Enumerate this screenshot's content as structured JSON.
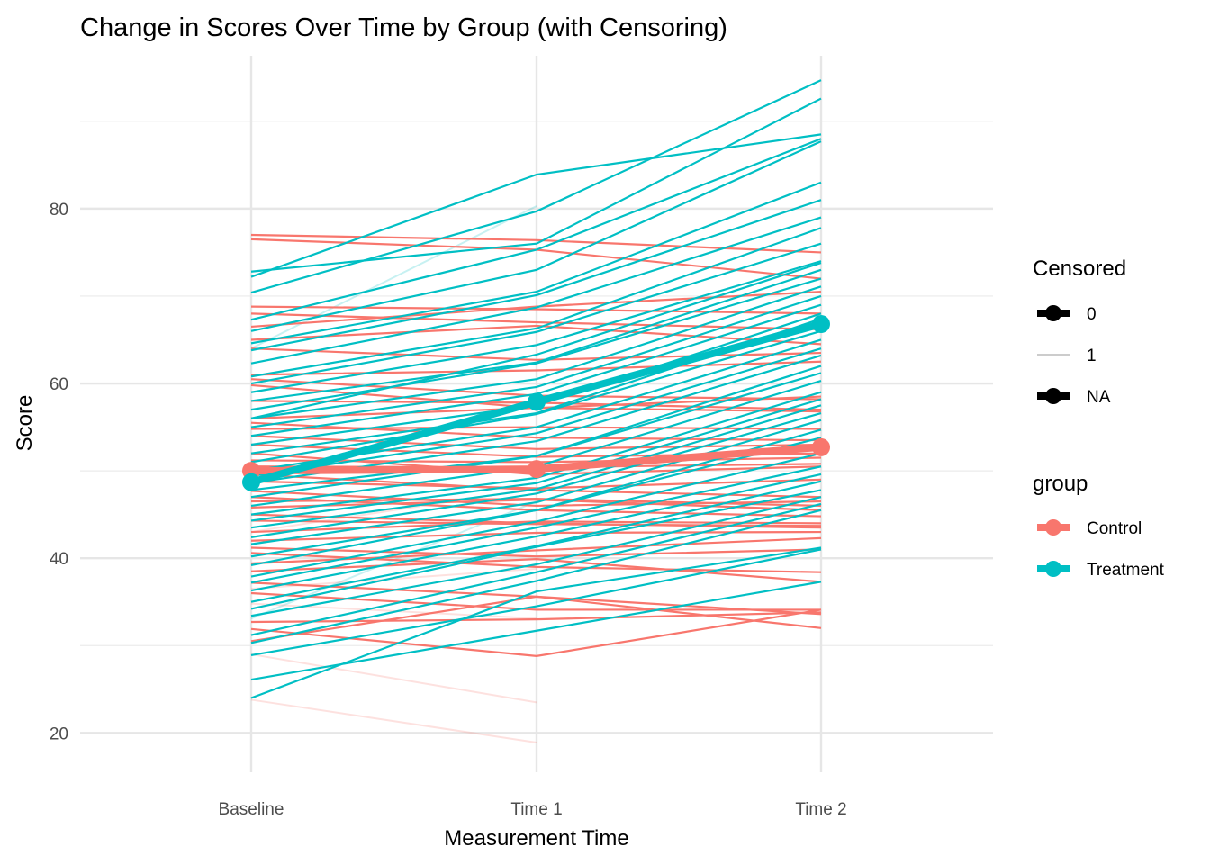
{
  "chart_data": {
    "type": "line",
    "title": "Change in Scores Over Time by Group (with Censoring)",
    "xlabel": "Measurement Time",
    "ylabel": "Score",
    "categories": [
      "Baseline",
      "Time 1",
      "Time 2"
    ],
    "ylim": [
      15.5,
      97.5
    ],
    "yticks": [
      20,
      40,
      60,
      80
    ],
    "grid": true,
    "legend_position": "right",
    "legends": [
      {
        "title": "Censored",
        "entries": [
          {
            "label": "0",
            "style": "thick"
          },
          {
            "label": "1",
            "style": "thin-light"
          },
          {
            "label": "NA",
            "style": "thick"
          }
        ]
      },
      {
        "title": "group",
        "entries": [
          {
            "label": "Control",
            "color": "#F8766D"
          },
          {
            "label": "Treatment",
            "color": "#00BFC4"
          }
        ]
      }
    ],
    "colors": {
      "Control": "#F8766D",
      "Treatment": "#00BFC4"
    },
    "group_means": [
      {
        "name": "Control",
        "values": [
          50.0,
          50.2,
          52.7
        ]
      },
      {
        "name": "Treatment",
        "values": [
          48.7,
          57.9,
          66.8
        ]
      }
    ],
    "control_trajectories": [
      [
        77.0,
        76.4,
        75.0
      ],
      [
        76.5,
        75.3,
        72.0
      ],
      [
        68.8,
        68.5,
        68.0
      ],
      [
        68.0,
        67.0,
        66.2
      ],
      [
        66.5,
        68.8,
        70.5
      ],
      [
        65.0,
        66.6,
        64.5
      ],
      [
        64.0,
        62.7,
        63.5
      ],
      [
        61.0,
        61.5,
        62.5
      ],
      [
        60.5,
        58.6,
        58.2
      ],
      [
        59.8,
        57.2,
        56.8
      ],
      [
        58.0,
        57.8,
        57.0
      ],
      [
        56.0,
        57.2,
        58.5
      ],
      [
        55.5,
        53.8,
        53.5
      ],
      [
        54.8,
        55.0,
        54.8
      ],
      [
        54.0,
        52.5,
        53.0
      ],
      [
        53.0,
        51.6,
        52.0
      ],
      [
        52.0,
        49.6,
        50.5
      ],
      [
        51.2,
        51.0,
        51.5
      ],
      [
        50.5,
        50.4,
        50.8
      ],
      [
        49.6,
        47.8,
        47.0
      ],
      [
        48.8,
        48.0,
        49.0
      ],
      [
        47.7,
        46.0,
        46.5
      ],
      [
        47.0,
        45.5,
        44.8
      ],
      [
        46.5,
        46.8,
        46.0
      ],
      [
        45.8,
        46.7,
        45.5
      ],
      [
        45.0,
        44.0,
        43.5
      ],
      [
        44.3,
        43.9,
        43.7
      ],
      [
        43.0,
        44.2,
        44.0
      ],
      [
        42.0,
        42.9,
        43.0
      ],
      [
        41.2,
        40.2,
        41.0
      ],
      [
        40.6,
        39.0,
        38.4
      ],
      [
        39.4,
        40.9,
        42.3
      ],
      [
        38.5,
        39.9,
        37.3
      ],
      [
        37.2,
        35.6,
        33.6
      ],
      [
        36.0,
        34.1,
        34.1
      ],
      [
        32.7,
        33.0,
        33.8
      ],
      [
        31.9,
        28.8,
        34.1
      ],
      [
        30.5,
        35.6,
        32.0
      ]
    ],
    "treatment_trajectories": [
      [
        72.8,
        76.0,
        92.6
      ],
      [
        72.2,
        83.9,
        88.5
      ],
      [
        70.4,
        79.7,
        94.7
      ],
      [
        67.3,
        75.3,
        88.0
      ],
      [
        66.0,
        73.0,
        87.7
      ],
      [
        64.6,
        70.5,
        83.0
      ],
      [
        63.8,
        70.1,
        81.0
      ],
      [
        62.3,
        68.7,
        79.0
      ],
      [
        60.8,
        66.3,
        77.8
      ],
      [
        60.0,
        65.9,
        76.0
      ],
      [
        59.0,
        64.4,
        74.0
      ],
      [
        58.0,
        62.4,
        73.0
      ],
      [
        57.0,
        62.3,
        72.0
      ],
      [
        56.0,
        60.5,
        71.1
      ],
      [
        55.0,
        59.6,
        70.0
      ],
      [
        54.0,
        58.8,
        69.0
      ],
      [
        53.0,
        57.5,
        68.0
      ],
      [
        52.0,
        56.6,
        67.4
      ],
      [
        51.0,
        56.5,
        66.0
      ],
      [
        50.0,
        55.0,
        65.0
      ],
      [
        49.4,
        54.3,
        64.0
      ],
      [
        48.6,
        53.4,
        63.2
      ],
      [
        47.8,
        51.7,
        62.0
      ],
      [
        47.0,
        51.7,
        61.2
      ],
      [
        46.0,
        50.5,
        60.3
      ],
      [
        45.0,
        49.2,
        59.0
      ],
      [
        44.3,
        48.6,
        58.2
      ],
      [
        43.5,
        47.9,
        57.5
      ],
      [
        42.4,
        47.4,
        56.6
      ],
      [
        41.6,
        46.4,
        55.8
      ],
      [
        40.2,
        45.5,
        54.7
      ],
      [
        39.2,
        45.5,
        53.8
      ],
      [
        37.9,
        44.2,
        52.0
      ],
      [
        37.2,
        43.5,
        50.5
      ],
      [
        36.3,
        42.5,
        49.6
      ],
      [
        35.0,
        41.4,
        48.8
      ],
      [
        34.2,
        41.3,
        47.8
      ],
      [
        33.4,
        39.3,
        47.0
      ],
      [
        31.2,
        38.4,
        46.2
      ],
      [
        30.3,
        37.4,
        45.5
      ],
      [
        28.9,
        34.5,
        41.0
      ],
      [
        26.1,
        31.7,
        37.3
      ],
      [
        24.0,
        36.2,
        41.2
      ],
      [
        56.0,
        63.3,
        73.8
      ]
    ],
    "censored_trajectories": [
      {
        "group": "Treatment",
        "values": [
          64.0,
          80.3,
          null
        ]
      },
      {
        "group": "Treatment",
        "values": [
          33.1,
          46.5,
          null
        ]
      },
      {
        "group": "Control",
        "values": [
          43.0,
          48.0,
          null
        ]
      },
      {
        "group": "Control",
        "values": [
          36.5,
          38.8,
          null
        ]
      },
      {
        "group": "Control",
        "values": [
          34.8,
          33.1,
          null
        ]
      },
      {
        "group": "Control",
        "values": [
          29.0,
          23.5,
          null
        ]
      },
      {
        "group": "Control",
        "values": [
          23.8,
          18.9,
          null
        ]
      }
    ]
  }
}
